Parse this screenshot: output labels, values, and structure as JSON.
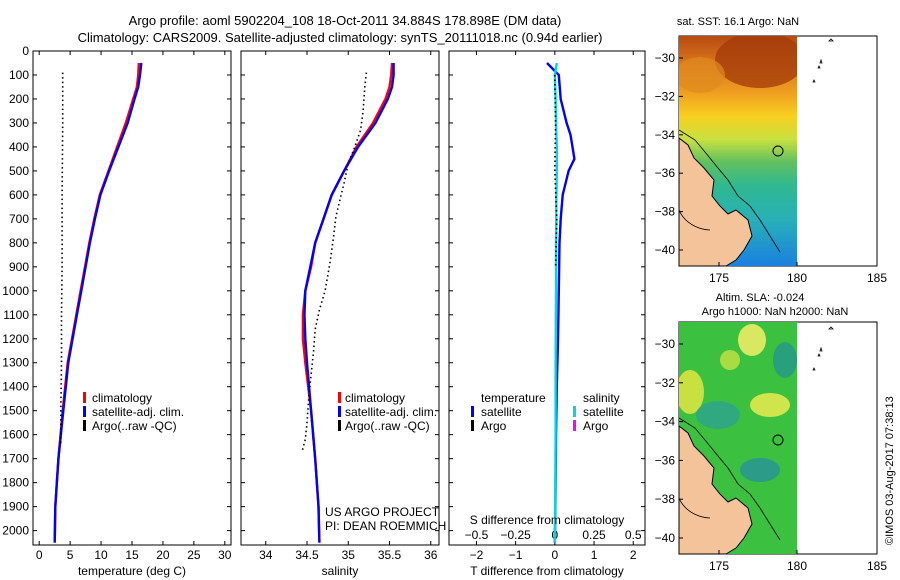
{
  "header": {
    "line1": "Argo profile: aoml 5902204_108 18-Oct-2011 34.884S 178.898E (DM data)",
    "line2": "Climatology: CARS2009. Satellite-adjusted climatology: synTS_20111018.nc (0.94d earlier)"
  },
  "chart_data": [
    {
      "type": "line",
      "name": "temperature-profile",
      "xlabel": "temperature (deg C)",
      "ylabel": "depth",
      "xlim": [
        -1,
        31
      ],
      "ylim": [
        2060,
        0
      ],
      "xticks": [
        0,
        5,
        10,
        15,
        20,
        25,
        30
      ],
      "yticks": [
        0,
        100,
        200,
        300,
        400,
        500,
        600,
        700,
        800,
        900,
        1000,
        1100,
        1200,
        1300,
        1400,
        1500,
        1600,
        1700,
        1800,
        1900,
        2000
      ],
      "series": [
        {
          "name": "climatology",
          "color": "#ff0000",
          "style": "solid",
          "x": [
            16.1,
            16.0,
            15.8,
            15.2,
            14.0,
            12.6,
            11.2,
            9.8,
            8.9,
            8.1,
            7.4,
            6.7,
            6.0,
            5.3,
            4.6,
            3.8,
            3.1,
            2.6,
            2.5
          ],
          "y": [
            50,
            100,
            150,
            200,
            300,
            400,
            500,
            600,
            700,
            800,
            900,
            1000,
            1100,
            1200,
            1300,
            1500,
            1700,
            1900,
            2050
          ]
        },
        {
          "name": "satellite-adj. clim.",
          "color": "#0000ff",
          "style": "solid",
          "x": [
            16.5,
            16.3,
            16.0,
            15.4,
            14.3,
            12.8,
            11.3,
            9.9,
            9.0,
            8.2,
            7.5,
            6.8,
            6.1,
            5.4,
            4.7,
            3.9,
            3.1,
            2.6,
            2.5
          ],
          "y": [
            50,
            100,
            150,
            200,
            300,
            400,
            500,
            600,
            700,
            800,
            900,
            1000,
            1100,
            1200,
            1300,
            1500,
            1700,
            1900,
            2050
          ]
        },
        {
          "name": "Argo(..raw -QC)",
          "color": "#000000",
          "style": "dotted",
          "x": [
            3.8,
            3.8,
            3.7,
            3.7,
            3.6,
            3.6,
            3.5,
            3.5
          ],
          "y": [
            90,
            300,
            600,
            900,
            1100,
            1300,
            1500,
            1640
          ]
        }
      ],
      "legend": [
        "climatology",
        "satellite-adj. clim.",
        "Argo(..raw -QC)"
      ]
    },
    {
      "type": "line",
      "name": "salinity-profile",
      "xlabel": "salinity",
      "ylabel": "depth",
      "xlim": [
        33.7,
        36.1
      ],
      "ylim": [
        2060,
        0
      ],
      "xticks": [
        34,
        34.5,
        35,
        35.5,
        36
      ],
      "xticklabels": [
        "34",
        "34.5",
        "35",
        "35.5",
        "36"
      ],
      "series": [
        {
          "name": "climatology",
          "color": "#ff0000",
          "style": "solid",
          "x": [
            35.53,
            35.52,
            35.5,
            35.45,
            35.3,
            35.1,
            34.95,
            34.8,
            34.7,
            34.6,
            34.55,
            34.48,
            34.45,
            34.45,
            34.48,
            34.55,
            34.6,
            34.64,
            34.65
          ],
          "y": [
            50,
            100,
            150,
            200,
            300,
            400,
            500,
            600,
            700,
            800,
            900,
            1000,
            1100,
            1200,
            1300,
            1500,
            1700,
            1900,
            2050
          ]
        },
        {
          "name": "satellite-adj. clim.",
          "color": "#0000ff",
          "style": "solid",
          "x": [
            35.55,
            35.55,
            35.53,
            35.48,
            35.33,
            35.12,
            34.95,
            34.8,
            34.7,
            34.6,
            34.54,
            34.48,
            34.47,
            34.48,
            34.5,
            34.55,
            34.6,
            34.64,
            34.65
          ],
          "y": [
            50,
            100,
            150,
            200,
            300,
            400,
            500,
            600,
            700,
            800,
            900,
            1000,
            1100,
            1200,
            1300,
            1500,
            1700,
            1900,
            2050
          ]
        },
        {
          "name": "Argo(..raw -QC)",
          "color": "#000000",
          "style": "dotted",
          "x": [
            35.22,
            35.2,
            35.18,
            35.15,
            35.08,
            35.0,
            34.95,
            34.9,
            34.85,
            34.82,
            34.78,
            34.72,
            34.65,
            34.6,
            34.58,
            34.55,
            34.52,
            34.5,
            34.48,
            34.44
          ],
          "y": [
            90,
            150,
            250,
            330,
            400,
            470,
            550,
            620,
            690,
            780,
            880,
            1000,
            1080,
            1160,
            1250,
            1350,
            1450,
            1550,
            1620,
            1670
          ]
        }
      ],
      "legend": [
        "climatology",
        "satellite-adj. clim.",
        "Argo(..raw -QC)"
      ],
      "annotations": [
        "US ARGO PROJECT",
        "PI: DEAN ROEMMICH"
      ]
    },
    {
      "type": "line",
      "name": "difference-profile",
      "xlabel": "T difference from climatology",
      "x2label": "S difference from climatology",
      "xlim": [
        -2.7,
        2.3
      ],
      "ylim": [
        2060,
        0
      ],
      "xticks": [
        -2,
        -1,
        0,
        1,
        2
      ],
      "xticklabels": [
        "−2",
        "−1",
        "0",
        "1",
        "2"
      ],
      "x2ticks": [
        -0.5,
        -0.25,
        0,
        0.25,
        0.5
      ],
      "x2ticklabels": [
        "−0.5",
        "−0.25",
        "0",
        "0.25",
        "0.5"
      ],
      "series": [
        {
          "name": "temperature satellite",
          "color": "#0000ff",
          "style": "solid",
          "x": [
            -0.2,
            0.1,
            0.15,
            0.3,
            0.4,
            0.45,
            0.5,
            0.35,
            0.2,
            0.15,
            0.12,
            0.1,
            0.08,
            0.05,
            0.03,
            0.02,
            0.01,
            0.0
          ],
          "y": [
            50,
            100,
            200,
            300,
            350,
            400,
            450,
            500,
            600,
            700,
            800,
            1000,
            1200,
            1400,
            1600,
            1800,
            1950,
            2050
          ]
        },
        {
          "name": "salinity satellite",
          "color": "#00d8e0",
          "style": "solid",
          "x": [
            0.05,
            0.0,
            0.02,
            0.03,
            0.05,
            0.05,
            0.04,
            0.03,
            0.03,
            0.02,
            0.02,
            0.01,
            0.0
          ],
          "y": [
            50,
            100,
            200,
            300,
            400,
            500,
            600,
            800,
            1000,
            1300,
            1600,
            1900,
            2050
          ]
        },
        {
          "name": "Argo temperature",
          "color": "#000000",
          "style": "dotted",
          "x": [
            0.0,
            0.02,
            0.0,
            0.05,
            0.02
          ],
          "y": [
            100,
            300,
            500,
            700,
            900
          ]
        }
      ],
      "legend_title_t": "temperature",
      "legend_title_s": "salinity",
      "legend": [
        {
          "label": "satellite",
          "color": "#0000ff"
        },
        {
          "label": "Argo",
          "color": "#000000"
        },
        {
          "label": "satellite",
          "color": "#00d8e0"
        },
        {
          "label": "Argo",
          "color": "#ff00ff"
        }
      ]
    }
  ],
  "maps": {
    "sst": {
      "title": "sat. SST: 16.1 Argo: NaN",
      "xticks": [
        "175",
        "180",
        "185"
      ],
      "yticks": [
        "−30",
        "−32",
        "−34",
        "−36",
        "−38",
        "−40"
      ]
    },
    "sla": {
      "title1": "Altim. SLA: -0.024",
      "title2": "Argo h1000: NaN h2000: NaN",
      "xticks": [
        "175",
        "180",
        "185"
      ],
      "yticks": [
        "−30",
        "−32",
        "−34",
        "−36",
        "−38",
        "−40"
      ]
    }
  },
  "watermark": "©IMOS 03-Aug-2017 07:38:13",
  "colors": {
    "land": "#f5c39a",
    "white": "#ffffff"
  }
}
